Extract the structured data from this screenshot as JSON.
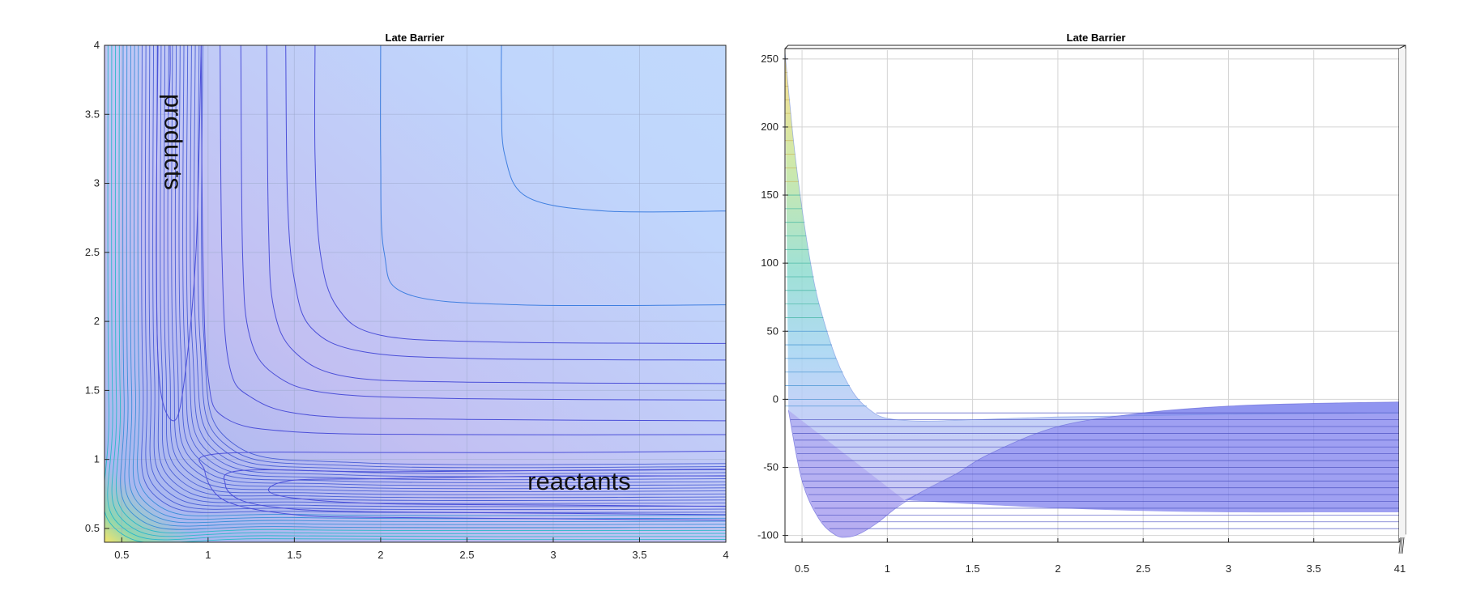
{
  "chart_data": [
    {
      "type": "contour",
      "title": "Late Barrier",
      "xlim": [
        0.4,
        4
      ],
      "ylim": [
        0.4,
        4
      ],
      "x_ticks": [
        "0.5",
        "1",
        "1.5",
        "2",
        "2.5",
        "3",
        "3.5",
        "4"
      ],
      "y_ticks": [
        "0.5",
        "1",
        "1.5",
        "2",
        "2.5",
        "3",
        "3.5",
        "4"
      ],
      "annotations": [
        {
          "text": "products",
          "x": 0.75,
          "y": 3.3,
          "rotation": 90
        },
        {
          "text": "reactants",
          "x": 3.15,
          "y": 0.78
        }
      ],
      "colormap": "parula",
      "surface_alpha": 0.35,
      "asymptote": -10,
      "contours": [
        {
          "level": -90,
          "points": [
            [
              4,
              0.88
            ],
            [
              3,
              0.88
            ],
            [
              2,
              0.86
            ],
            [
              1.5,
              0.85
            ],
            [
              1.35,
              0.78
            ],
            [
              1.5,
              0.72
            ],
            [
              2,
              0.68
            ],
            [
              3,
              0.67
            ],
            [
              4,
              0.66
            ]
          ]
        },
        {
          "level": -75,
          "points": [
            [
              4,
              0.93
            ],
            [
              3,
              0.92
            ],
            [
              2,
              0.91
            ],
            [
              1.2,
              0.92
            ],
            [
              1.1,
              0.82
            ],
            [
              1.2,
              0.7
            ],
            [
              1.5,
              0.64
            ],
            [
              2,
              0.62
            ],
            [
              3,
              0.61
            ],
            [
              4,
              0.6
            ]
          ]
        },
        {
          "level": -60,
          "points": [
            [
              4,
              1.06
            ],
            [
              3,
              1.05
            ],
            [
              2,
              1.05
            ],
            [
              1.05,
              1.04
            ],
            [
              0.98,
              0.92
            ],
            [
              1.1,
              0.7
            ],
            [
              1.5,
              0.6
            ],
            [
              2,
              0.58
            ],
            [
              3,
              0.57
            ],
            [
              4,
              0.56
            ]
          ]
        },
        {
          "level": -50,
          "points": [
            [
              4,
              1.18
            ],
            [
              2.5,
              1.18
            ],
            [
              1.5,
              1.2
            ],
            [
              1.1,
              1.3
            ],
            [
              1.0,
              1.6
            ],
            [
              0.97,
              2.5
            ],
            [
              0.96,
              4
            ]
          ]
        },
        {
          "level": -40,
          "points": [
            [
              4,
              1.28
            ],
            [
              2.5,
              1.29
            ],
            [
              1.6,
              1.32
            ],
            [
              1.25,
              1.45
            ],
            [
              1.12,
              1.7
            ],
            [
              1.08,
              2.5
            ],
            [
              1.07,
              4
            ]
          ]
        },
        {
          "level": -30,
          "points": [
            [
              4,
              1.43
            ],
            [
              2.5,
              1.44
            ],
            [
              1.7,
              1.48
            ],
            [
              1.38,
              1.62
            ],
            [
              1.24,
              1.9
            ],
            [
              1.2,
              2.5
            ],
            [
              1.19,
              4
            ]
          ]
        },
        {
          "level": -20,
          "points": [
            [
              4,
              1.55
            ],
            [
              2.5,
              1.56
            ],
            [
              1.8,
              1.6
            ],
            [
              1.5,
              1.78
            ],
            [
              1.38,
              2.1
            ],
            [
              1.35,
              2.7
            ],
            [
              1.34,
              4
            ]
          ]
        },
        {
          "level": -10,
          "points": [
            [
              4,
              1.72
            ],
            [
              2.6,
              1.73
            ],
            [
              1.9,
              1.78
            ],
            [
              1.6,
              1.95
            ],
            [
              1.5,
              2.3
            ],
            [
              1.46,
              2.9
            ],
            [
              1.45,
              4
            ]
          ]
        },
        {
          "level": -5,
          "points": [
            [
              4,
              1.84
            ],
            [
              2.7,
              1.85
            ],
            [
              2.0,
              1.9
            ],
            [
              1.75,
              2.1
            ],
            [
              1.65,
              2.5
            ],
            [
              1.62,
              3.2
            ],
            [
              1.62,
              4
            ]
          ]
        },
        {
          "level": 0,
          "points": [
            [
              4,
              2.12
            ],
            [
              2.8,
              2.12
            ],
            [
              2.15,
              2.2
            ],
            [
              2.02,
              2.5
            ],
            [
              2.0,
              3.2
            ],
            [
              2.0,
              4
            ]
          ]
        },
        {
          "level": 5,
          "points": [
            [
              4,
              2.8
            ],
            [
              3.3,
              2.8
            ],
            [
              2.85,
              2.9
            ],
            [
              2.72,
              3.2
            ],
            [
              2.7,
              3.6
            ],
            [
              2.7,
              4
            ]
          ]
        },
        {
          "level": -70,
          "points": [
            [
              0.96,
              4
            ],
            [
              0.93,
              2.5
            ],
            [
              0.86,
              1.55
            ],
            [
              0.8,
              1.28
            ],
            [
              0.72,
              1.55
            ],
            [
              0.7,
              2.5
            ],
            [
              0.71,
              4
            ]
          ]
        },
        {
          "level": -85,
          "points": [
            [
              0.78,
              4
            ],
            [
              0.78,
              3.8
            ],
            [
              0.77,
              3.5
            ]
          ]
        }
      ]
    },
    {
      "type": "surface",
      "title": "Late Barrier",
      "xlim": [
        0.4,
        4
      ],
      "ylim": [
        -105,
        260
      ],
      "x_ticks": [
        "0.5",
        "1",
        "1.5",
        "2",
        "2.5",
        "3",
        "3.5",
        "4"
      ],
      "y_ticks": [
        "-100",
        "-50",
        "0",
        "50",
        "100",
        "150",
        "200",
        "250"
      ],
      "curve_front": {
        "x": [
          0.4,
          0.45,
          0.5,
          0.55,
          0.6,
          0.7,
          0.8,
          0.9,
          1.0,
          1.2,
          1.5,
          2.0,
          2.5,
          3.0,
          3.5,
          4.0
        ],
        "y": [
          255,
          190,
          140,
          100,
          70,
          30,
          5,
          -8,
          -14,
          -16,
          -15,
          -13,
          -12,
          -11,
          -10.5,
          -10
        ]
      },
      "curve_well": {
        "x": [
          0.42,
          0.5,
          0.6,
          0.7,
          0.78,
          0.85,
          0.95,
          1.05,
          1.2,
          1.4,
          1.6,
          2.0,
          2.5,
          3.0,
          3.5,
          4.0
        ],
        "y": [
          -8,
          -60,
          -88,
          -100,
          -101,
          -98,
          -90,
          -80,
          -68,
          -55,
          -40,
          -20,
          -10,
          -5,
          -3,
          -2
        ]
      },
      "curve_bottom": {
        "x": [
          1.1,
          1.5,
          2.0,
          2.5,
          3.0,
          3.5,
          4.0
        ],
        "y": [
          -74,
          -77,
          -80,
          -82,
          -83,
          -83,
          -83
        ]
      },
      "contour_levels": [
        -95,
        -90,
        -85,
        -80,
        -75,
        -70,
        -65,
        -60,
        -55,
        -50,
        -45,
        -40,
        -35,
        -30,
        -25,
        -20,
        -15,
        -10,
        -5,
        0,
        10,
        20,
        30,
        40,
        50,
        60,
        70,
        80,
        90,
        100,
        110,
        120,
        130,
        140,
        150,
        160,
        170,
        180,
        190,
        200,
        210,
        220,
        230,
        240,
        250
      ],
      "extra_tick_label": "1"
    }
  ]
}
